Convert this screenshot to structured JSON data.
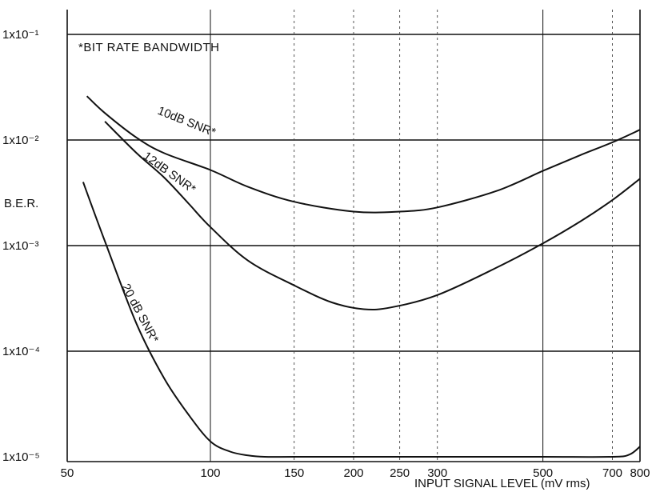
{
  "chart_data": {
    "type": "line",
    "x_scale": "log",
    "y_scale": "log",
    "xlim": [
      50,
      800
    ],
    "ylim": [
      1e-05,
      0.1
    ],
    "xlabel": "INPUT SIGNAL LEVEL (mV rms)",
    "ylabel": "B.E.R.",
    "note": "*BIT RATE BANDWIDTH",
    "x_ticks": [
      {
        "value": 50,
        "label": "50",
        "line": "none"
      },
      {
        "value": 100,
        "label": "100",
        "line": "solid"
      },
      {
        "value": 150,
        "label": "150",
        "line": "dashed"
      },
      {
        "value": 200,
        "label": "200",
        "line": "dashed"
      },
      {
        "value": 250,
        "label": "250",
        "line": "dashed"
      },
      {
        "value": 300,
        "label": "300",
        "line": "dashed"
      },
      {
        "value": 500,
        "label": "500",
        "line": "solid"
      },
      {
        "value": 700,
        "label": "700",
        "line": "dashed"
      },
      {
        "value": 800,
        "label": "800",
        "line": "none"
      }
    ],
    "y_ticks": [
      {
        "value": 0.1,
        "label": "1x10⁻¹"
      },
      {
        "value": 0.01,
        "label": "1x10⁻²"
      },
      {
        "value": 0.001,
        "label": "1x10⁻³"
      },
      {
        "value": 0.0001,
        "label": "1x10⁻⁴"
      },
      {
        "value": 1e-05,
        "label": "1x10⁻⁵"
      }
    ],
    "series": [
      {
        "name": "10dB SNR*",
        "x": [
          55,
          60,
          70,
          80,
          100,
          120,
          150,
          200,
          250,
          300,
          400,
          500,
          600,
          700,
          800
        ],
        "y": [
          0.026,
          0.018,
          0.0105,
          0.0075,
          0.0052,
          0.0036,
          0.0026,
          0.0021,
          0.0021,
          0.0023,
          0.0033,
          0.0051,
          0.0072,
          0.0095,
          0.0125
        ]
      },
      {
        "name": "12dB SNR*",
        "x": [
          60,
          70,
          80,
          90,
          100,
          120,
          150,
          180,
          210,
          240,
          300,
          400,
          500,
          600,
          700,
          800
        ],
        "y": [
          0.015,
          0.0075,
          0.0044,
          0.0025,
          0.0015,
          0.00072,
          0.00042,
          0.00029,
          0.00025,
          0.00026,
          0.00034,
          0.00062,
          0.00105,
          0.0017,
          0.0027,
          0.0043
        ]
      },
      {
        "name": "20 dB SNR*",
        "x": [
          54,
          60,
          70,
          80,
          90,
          100,
          110,
          120,
          130,
          150,
          200,
          300,
          500,
          700,
          760,
          800
        ],
        "y": [
          0.004,
          0.0011,
          0.00018,
          5.5e-05,
          2.5e-05,
          1.4e-05,
          1.12e-05,
          1.03e-05,
          1e-05,
          1e-05,
          1e-05,
          1e-05,
          1e-05,
          1e-05,
          1.05e-05,
          1.25e-05
        ]
      }
    ]
  }
}
